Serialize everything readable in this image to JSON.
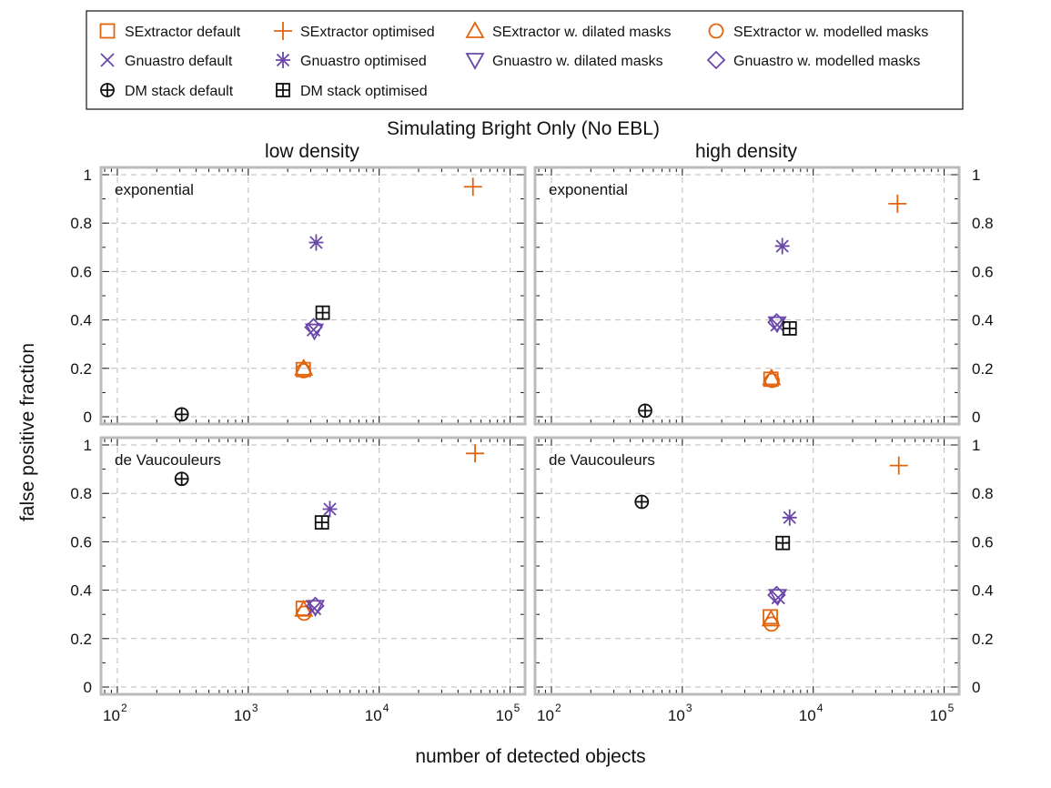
{
  "colors": {
    "sextractor": "#e2640e",
    "gnuastro": "#6a47a8",
    "dmstack": "#111111",
    "grid": "#bbbbbb"
  },
  "legend": {
    "items": [
      {
        "label": "SExtractor default",
        "marker": "square",
        "color": "#e2640e"
      },
      {
        "label": "SExtractor optimised",
        "marker": "plus",
        "color": "#e2640e"
      },
      {
        "label": "SExtractor w. dilated masks",
        "marker": "triangle-up",
        "color": "#e2640e"
      },
      {
        "label": "SExtractor w. modelled masks",
        "marker": "circle",
        "color": "#e2640e"
      },
      {
        "label": "Gnuastro default",
        "marker": "x",
        "color": "#6a47a8"
      },
      {
        "label": "Gnuastro optimised",
        "marker": "asterisk",
        "color": "#6a47a8"
      },
      {
        "label": "Gnuastro w. dilated masks",
        "marker": "triangle-down",
        "color": "#6a47a8"
      },
      {
        "label": "Gnuastro w. modelled masks",
        "marker": "diamond",
        "color": "#6a47a8"
      },
      {
        "label": "DM stack default",
        "marker": "circle-plus",
        "color": "#111111"
      },
      {
        "label": "DM stack optimised",
        "marker": "square-plus",
        "color": "#111111"
      }
    ]
  },
  "chart_data": {
    "type": "scatter",
    "title": "Simulating Bright Only (No EBL)",
    "xlabel": "number of detected objects",
    "ylabel": "false positive fraction",
    "xscale": "log",
    "xlim": [
      75,
      130000
    ],
    "ylim": [
      -0.03,
      1.03
    ],
    "grid": true,
    "legend_position": "top",
    "column_titles": [
      "low density",
      "high density"
    ],
    "y_ticks": [
      0,
      0.2,
      0.4,
      0.6,
      0.8,
      1
    ],
    "y_tick_labels": [
      "0",
      "0.2",
      "0.4",
      "0.6",
      "0.8",
      "1"
    ],
    "x_ticks": [
      100,
      1000,
      10000,
      100000
    ],
    "x_tick_labels": [
      "10",
      "10",
      "10",
      "10"
    ],
    "x_tick_exponents": [
      "2",
      "3",
      "4",
      "5"
    ],
    "panels": [
      {
        "column": "low density",
        "profile": "exponential",
        "series": [
          {
            "name": "SExtractor default",
            "points": [
              [
                2630,
                0.195
              ]
            ]
          },
          {
            "name": "SExtractor optimised",
            "points": [
              [
                52000,
                0.95
              ]
            ]
          },
          {
            "name": "SExtractor w. dilated masks",
            "points": [
              [
                2650,
                0.2
              ]
            ]
          },
          {
            "name": "SExtractor w. modelled masks",
            "points": [
              [
                2640,
                0.19
              ]
            ]
          },
          {
            "name": "Gnuastro default",
            "points": [
              [
                3150,
                0.36
              ]
            ]
          },
          {
            "name": "Gnuastro optimised",
            "points": [
              [
                3300,
                0.72
              ]
            ]
          },
          {
            "name": "Gnuastro w. dilated masks",
            "points": [
              [
                3200,
                0.355
              ]
            ]
          },
          {
            "name": "Gnuastro w. modelled masks",
            "points": [
              [
                3150,
                0.37
              ]
            ]
          },
          {
            "name": "DM stack default",
            "points": [
              [
                310,
                0.01
              ]
            ]
          },
          {
            "name": "DM stack optimised",
            "points": [
              [
                3700,
                0.43
              ]
            ]
          }
        ]
      },
      {
        "column": "high density",
        "profile": "exponential",
        "series": [
          {
            "name": "SExtractor default",
            "points": [
              [
                4750,
                0.155
              ]
            ]
          },
          {
            "name": "SExtractor optimised",
            "points": [
              [
                44000,
                0.88
              ]
            ]
          },
          {
            "name": "SExtractor w. dilated masks",
            "points": [
              [
                4800,
                0.16
              ]
            ]
          },
          {
            "name": "SExtractor w. modelled masks",
            "points": [
              [
                4850,
                0.15
              ]
            ]
          },
          {
            "name": "Gnuastro default",
            "points": [
              [
                5300,
                0.38
              ]
            ]
          },
          {
            "name": "Gnuastro optimised",
            "points": [
              [
                5800,
                0.705
              ]
            ]
          },
          {
            "name": "Gnuastro w. dilated masks",
            "points": [
              [
                5300,
                0.385
              ]
            ]
          },
          {
            "name": "Gnuastro w. modelled masks",
            "points": [
              [
                5250,
                0.39
              ]
            ]
          },
          {
            "name": "DM stack default",
            "points": [
              [
                520,
                0.025
              ]
            ]
          },
          {
            "name": "DM stack optimised",
            "points": [
              [
                6600,
                0.365
              ]
            ]
          }
        ]
      },
      {
        "column": "low density",
        "profile": "de Vaucouleurs",
        "series": [
          {
            "name": "SExtractor default",
            "points": [
              [
                2630,
                0.325
              ]
            ]
          },
          {
            "name": "SExtractor optimised",
            "points": [
              [
                54000,
                0.965
              ]
            ]
          },
          {
            "name": "SExtractor w. dilated masks",
            "points": [
              [
                2650,
                0.32
              ]
            ]
          },
          {
            "name": "SExtractor w. modelled masks",
            "points": [
              [
                2670,
                0.305
              ]
            ]
          },
          {
            "name": "Gnuastro default",
            "points": [
              [
                3200,
                0.325
              ]
            ]
          },
          {
            "name": "Gnuastro optimised",
            "points": [
              [
                4200,
                0.735
              ]
            ]
          },
          {
            "name": "Gnuastro w. dilated masks",
            "points": [
              [
                3250,
                0.33
              ]
            ]
          },
          {
            "name": "Gnuastro w. modelled masks",
            "points": [
              [
                3250,
                0.335
              ]
            ]
          },
          {
            "name": "DM stack default",
            "points": [
              [
                310,
                0.86
              ]
            ]
          },
          {
            "name": "DM stack optimised",
            "points": [
              [
                3650,
                0.68
              ]
            ]
          }
        ]
      },
      {
        "column": "high density",
        "profile": "de Vaucouleurs",
        "series": [
          {
            "name": "SExtractor default",
            "points": [
              [
                4700,
                0.29
              ]
            ]
          },
          {
            "name": "SExtractor optimised",
            "points": [
              [
                45000,
                0.915
              ]
            ]
          },
          {
            "name": "SExtractor w. dilated masks",
            "points": [
              [
                4750,
                0.28
              ]
            ]
          },
          {
            "name": "SExtractor w. modelled masks",
            "points": [
              [
                4800,
                0.26
              ]
            ]
          },
          {
            "name": "Gnuastro default",
            "points": [
              [
                5400,
                0.37
              ]
            ]
          },
          {
            "name": "Gnuastro optimised",
            "points": [
              [
                6600,
                0.7
              ]
            ]
          },
          {
            "name": "Gnuastro w. dilated masks",
            "points": [
              [
                5350,
                0.375
              ]
            ]
          },
          {
            "name": "Gnuastro w. modelled masks",
            "points": [
              [
                5250,
                0.38
              ]
            ]
          },
          {
            "name": "DM stack default",
            "points": [
              [
                490,
                0.765
              ]
            ]
          },
          {
            "name": "DM stack optimised",
            "points": [
              [
                5850,
                0.595
              ]
            ]
          }
        ]
      }
    ]
  }
}
